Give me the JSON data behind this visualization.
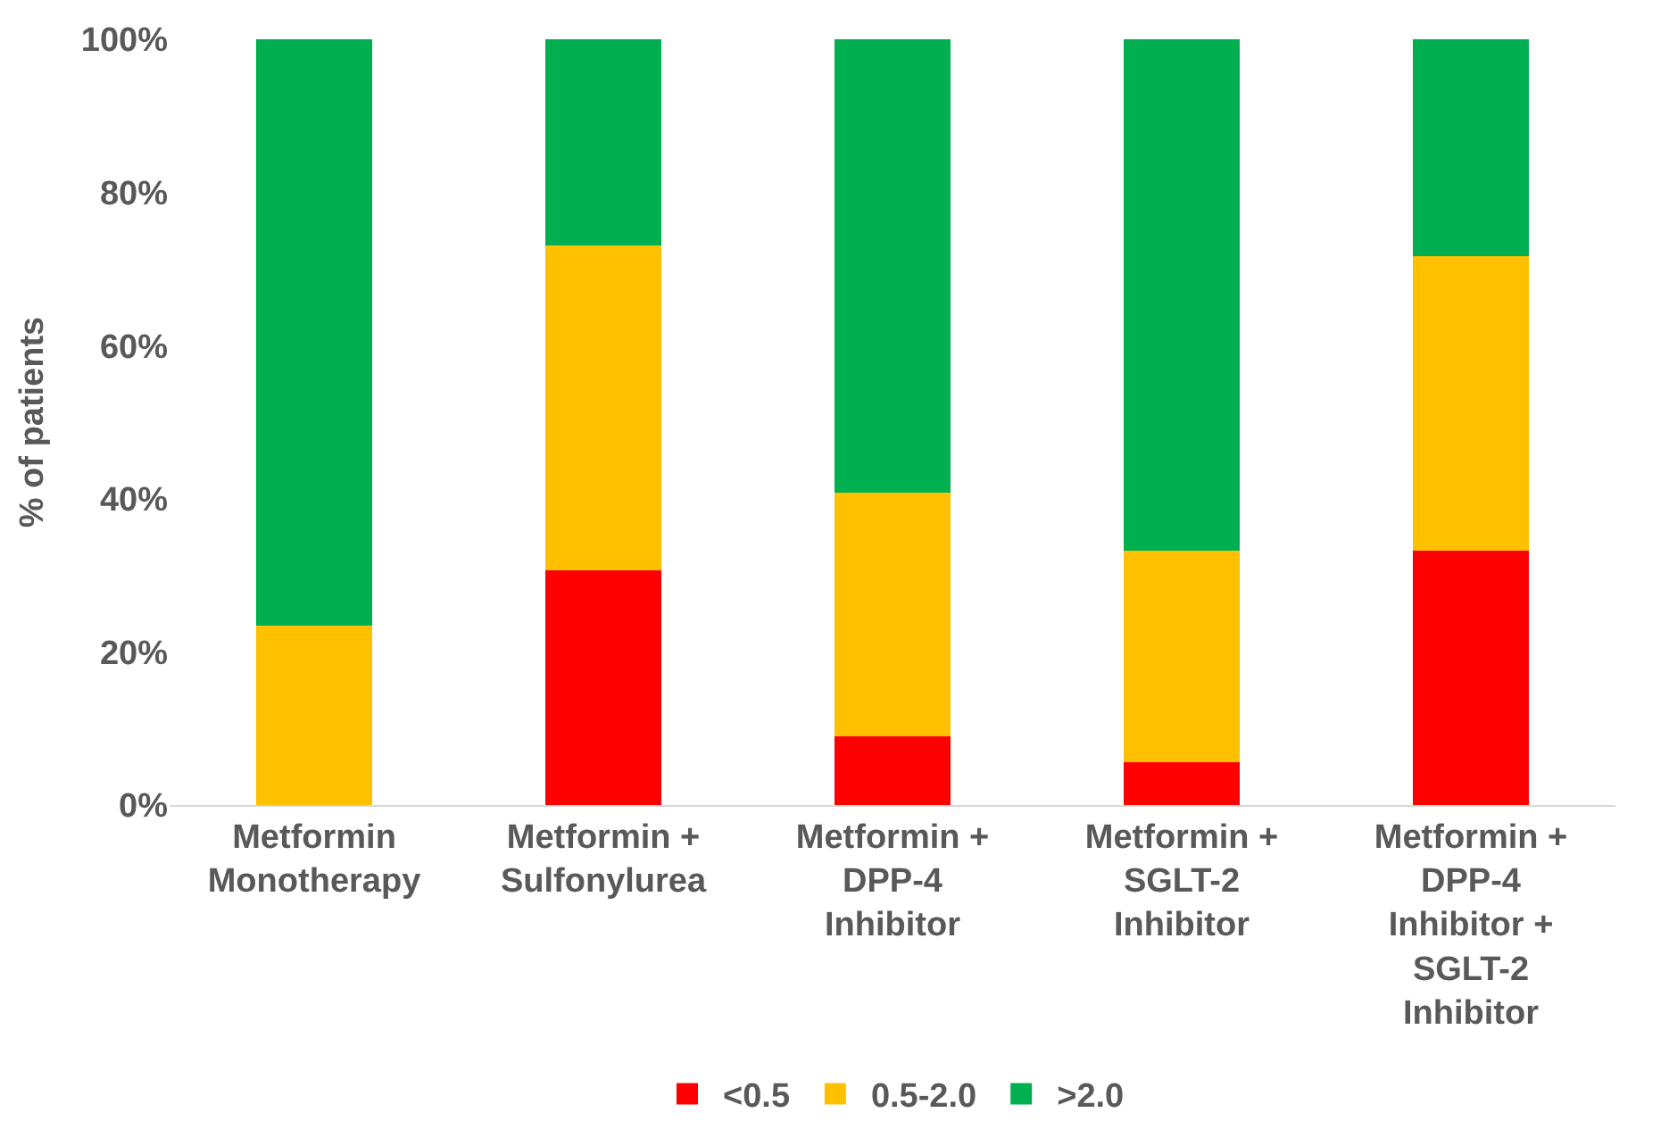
{
  "chart_data": {
    "type": "bar",
    "stacked": true,
    "ylabel": "% of patients",
    "categories": [
      "Metformin\nMonotherapy",
      "Metformin +\nSulfonylurea",
      "Metformin +\nDPP-4\nInhibitor",
      "Metformin +\nSGLT-2\nInhibitor",
      "Metformin +\nDPP-4\nInhibitor +\nSGLT-2\nInhibitor"
    ],
    "series": [
      {
        "name": "<0.5",
        "color": "#ff0000",
        "values": [
          0,
          30.6,
          9.0,
          5.6,
          33.2
        ]
      },
      {
        "name": "0.5-2.0",
        "color": "#ffc000",
        "values": [
          23.4,
          42.5,
          31.8,
          27.6,
          38.5
        ]
      },
      {
        "name": ">2.0",
        "color": "#00b050",
        "values": [
          76.6,
          26.9,
          59.2,
          66.8,
          28.3
        ]
      }
    ],
    "ylim": [
      0,
      100
    ],
    "yticks": [
      {
        "value": 0,
        "label": "0%"
      },
      {
        "value": 20,
        "label": "20%"
      },
      {
        "value": 40,
        "label": "40%"
      },
      {
        "value": 60,
        "label": "60%"
      },
      {
        "value": 80,
        "label": "80%"
      },
      {
        "value": 100,
        "label": "100%"
      }
    ],
    "legend": "bottom"
  }
}
